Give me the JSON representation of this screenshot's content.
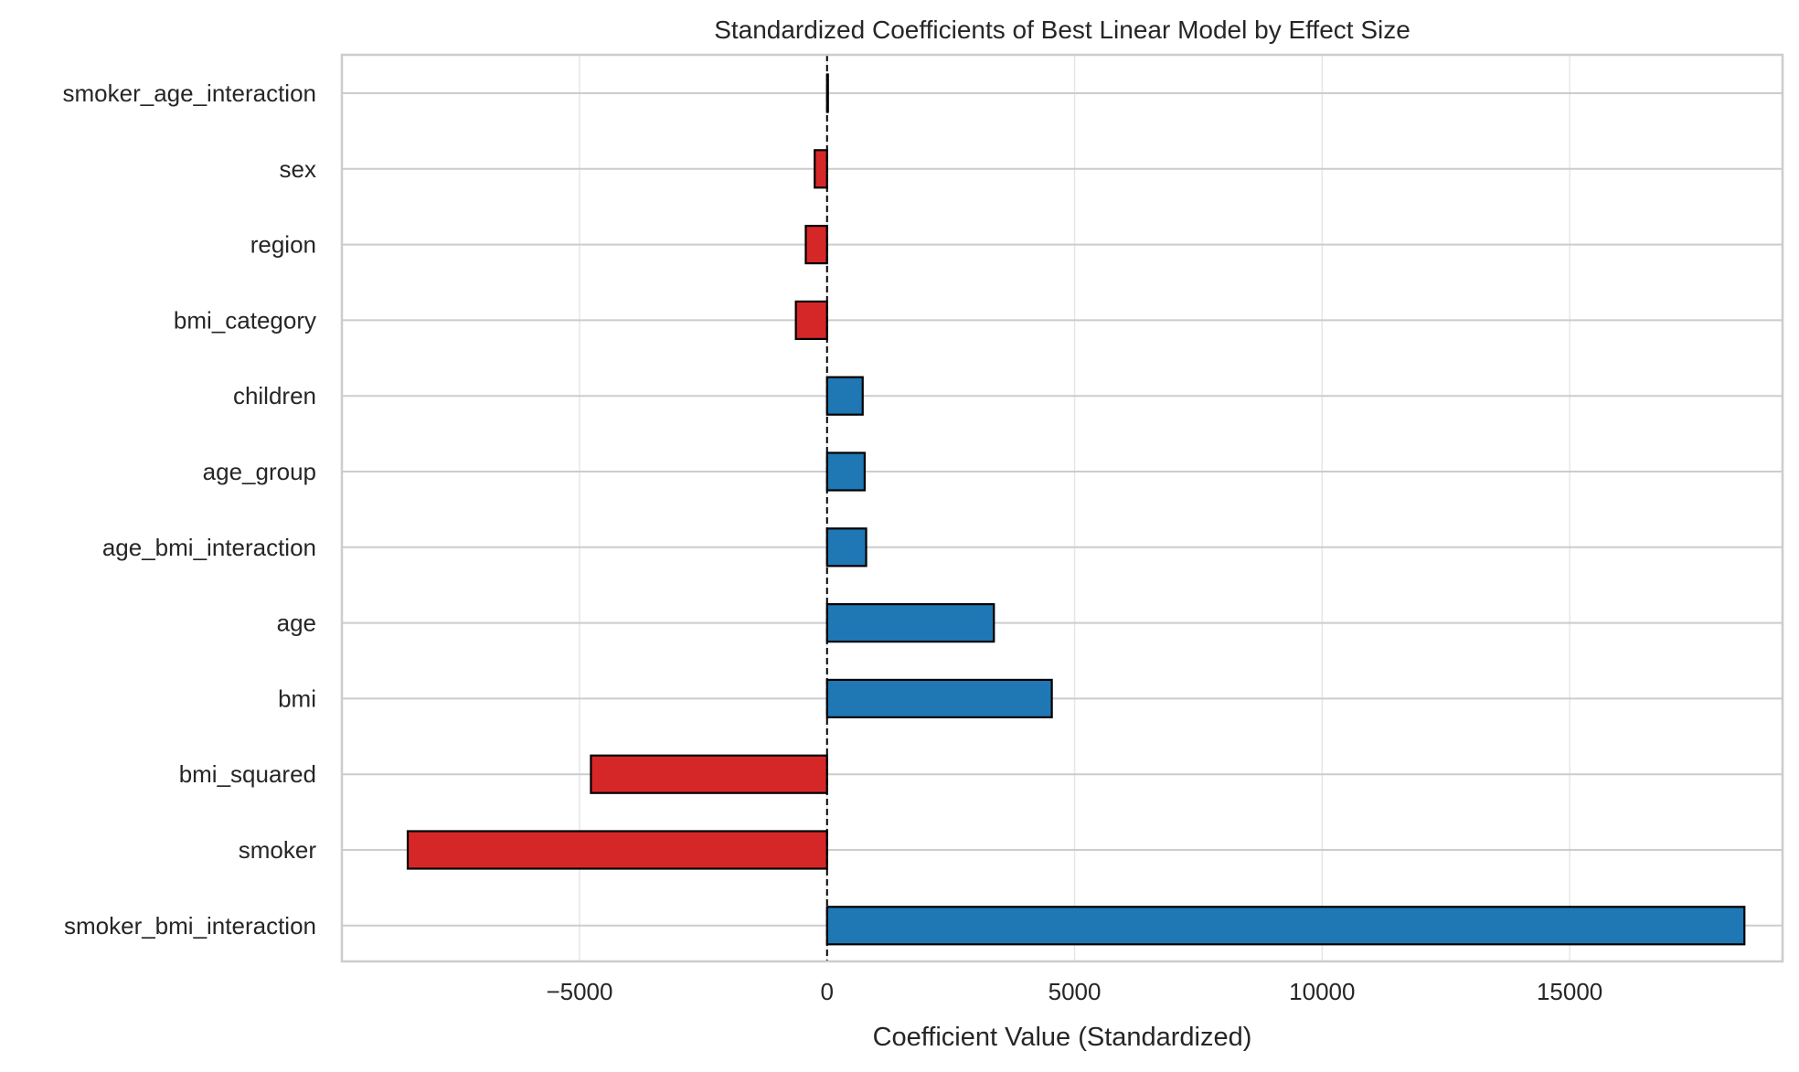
{
  "chart_data": {
    "type": "bar",
    "orientation": "horizontal",
    "title": "Standardized Coefficients of Best Linear Model by Effect Size",
    "xlabel": "Coefficient Value (Standardized)",
    "ylabel": "",
    "categories": [
      "smoker_age_interaction",
      "sex",
      "region",
      "bmi_category",
      "children",
      "age_group",
      "age_bmi_interaction",
      "age",
      "bmi",
      "bmi_squared",
      "smoker",
      "smoker_bmi_interaction"
    ],
    "values": [
      10,
      -250,
      -430,
      -630,
      720,
      760,
      790,
      3370,
      4540,
      -4770,
      -8470,
      18530
    ],
    "xlim": [
      -9800,
      19300
    ],
    "xticks": [
      -5000,
      0,
      5000,
      10000,
      15000
    ],
    "xtick_labels": [
      "−5000",
      "0",
      "5000",
      "10000",
      "15000"
    ],
    "grid": true,
    "reference_line": 0,
    "legend": "none",
    "colors": {
      "positive": "#1f77b4",
      "negative": "#d62728",
      "edge": "#000000",
      "grid": "#e6e6e6",
      "axis": "#cccccc",
      "zero_line": "#000000"
    }
  }
}
